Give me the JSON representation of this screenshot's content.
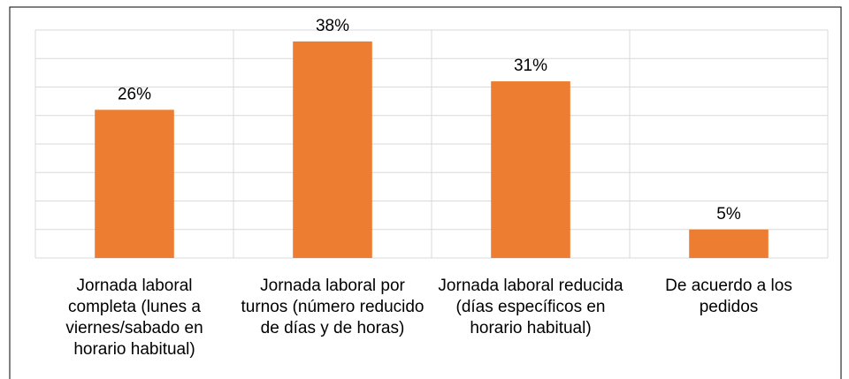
{
  "chart_data": {
    "type": "bar",
    "categories": [
      "Jornada laboral completa (lunes a viernes/sabado en horario habitual)",
      "Jornada laboral por turnos (número reducido de días y de horas)",
      "Jornada laboral reducida (días específicos en horario habitual)",
      "De acuerdo a los pedidos"
    ],
    "values": [
      26,
      38,
      31,
      5
    ],
    "value_labels": [
      "26%",
      "38%",
      "31%",
      "5%"
    ],
    "color": "#ed7d31",
    "ylim": [
      0,
      40
    ],
    "yticks": [
      0,
      5,
      10,
      15,
      20,
      25,
      30,
      35,
      40
    ],
    "grid": true
  }
}
